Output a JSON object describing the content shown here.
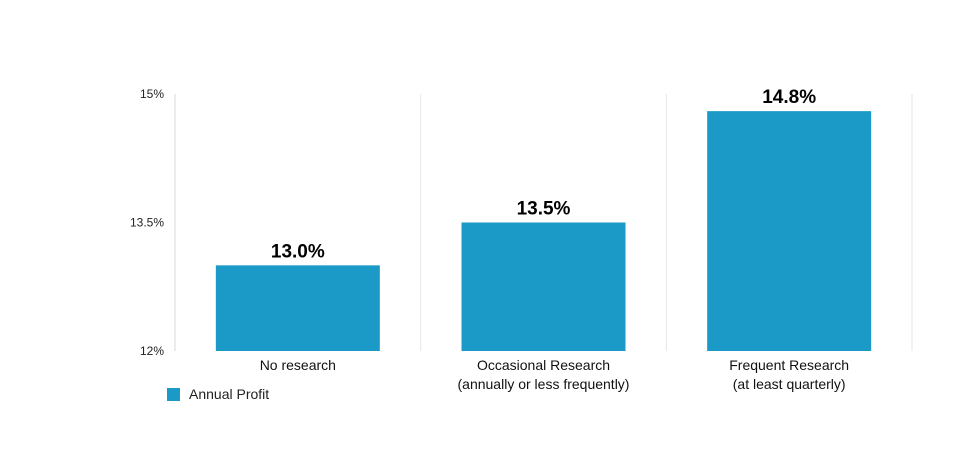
{
  "chart_data": {
    "type": "bar",
    "categories": [
      [
        "No research"
      ],
      [
        "Occasional Research",
        "(annually or less frequently)"
      ],
      [
        "Frequent Research",
        "(at least quarterly)"
      ]
    ],
    "series": [
      {
        "name": "Annual Profit",
        "values": [
          13.0,
          13.5,
          14.8
        ],
        "labels": [
          "13.0%",
          "13.5%",
          "14.8%"
        ]
      }
    ],
    "ylim": [
      12,
      15
    ],
    "yticks": [
      12,
      13.5,
      15
    ],
    "ytick_labels": [
      "12%",
      "13.5%",
      "15%"
    ],
    "legend_position": "bottom-left",
    "grid": false
  },
  "colors": {
    "bar": "#1b9ac7"
  }
}
